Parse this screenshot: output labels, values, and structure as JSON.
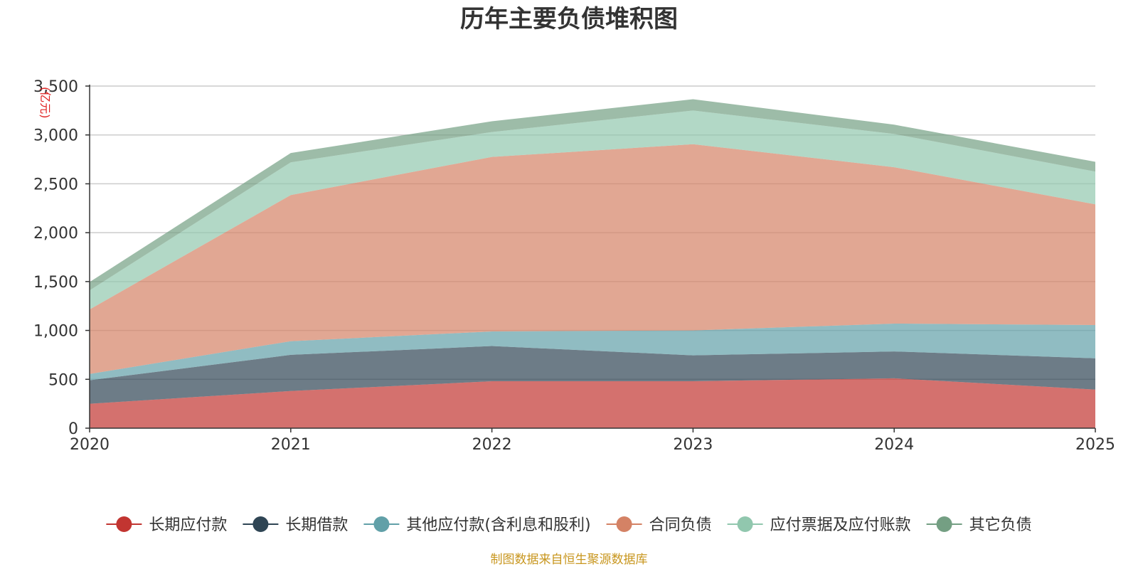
{
  "chart_data": {
    "type": "area",
    "stacked": true,
    "title": "历年主要负债堆积图",
    "unit_label": "(亿元)",
    "x": [
      "2020",
      "2021",
      "2022",
      "2023",
      "2024",
      "2025"
    ],
    "ylim": [
      0,
      3500
    ],
    "yticks": [
      0,
      500,
      1000,
      1500,
      2000,
      2500,
      3000,
      3500
    ],
    "ytick_labels": [
      "0",
      "500",
      "1,000",
      "1,500",
      "2,000",
      "2,500",
      "3,000",
      "3,500"
    ],
    "grid": true,
    "legend_position": "bottom",
    "series": [
      {
        "name": "长期应付款",
        "color": "#c23531",
        "values": [
          250,
          380,
          480,
          480,
          510,
          395
        ]
      },
      {
        "name": "长期借款",
        "color": "#2f4554",
        "values": [
          240,
          370,
          360,
          265,
          275,
          320
        ]
      },
      {
        "name": "其他应付款(含利息和股利)",
        "color": "#61a0a8",
        "values": [
          65,
          140,
          150,
          255,
          285,
          340
        ]
      },
      {
        "name": "合同负债",
        "color": "#d48265",
        "values": [
          660,
          1495,
          1785,
          1905,
          1600,
          1235
        ]
      },
      {
        "name": "应付票据及应付账款",
        "color": "#91c7ae",
        "values": [
          195,
          335,
          255,
          345,
          340,
          335
        ]
      },
      {
        "name": "其它负债",
        "color": "#749f83",
        "values": [
          85,
          95,
          110,
          115,
          95,
          100
        ]
      }
    ]
  },
  "source_text": "制图数据来自恒生聚源数据库"
}
